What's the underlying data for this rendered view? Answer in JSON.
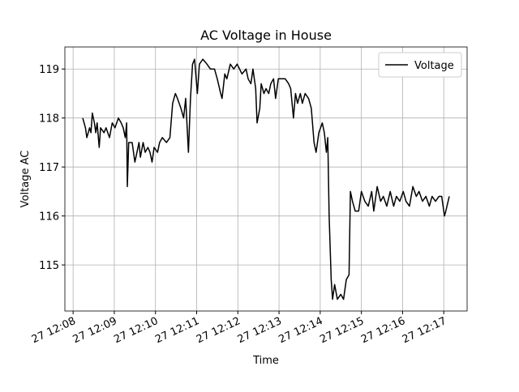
{
  "chart_data": {
    "type": "line",
    "title": "AC Voltage in House",
    "xlabel": "Time",
    "ylabel": "Voltage AC",
    "x": [
      "27 12:08:14",
      "27 12:08:18",
      "27 12:08:20",
      "27 12:08:24",
      "27 12:08:26",
      "27 12:08:28",
      "27 12:08:31",
      "27 12:08:33",
      "27 12:08:35",
      "27 12:08:38",
      "27 12:08:40",
      "27 12:08:45",
      "27 12:08:48",
      "27 12:08:53",
      "27 12:08:57",
      "27 12:09:01",
      "27 12:09:06",
      "27 12:09:10",
      "27 12:09:13",
      "27 12:09:16",
      "27 12:09:18",
      "27 12:09:19",
      "27 12:09:21",
      "27 12:09:26",
      "27 12:09:30",
      "27 12:09:33",
      "27 12:09:36",
      "27 12:09:38",
      "27 12:09:42",
      "27 12:09:45",
      "27 12:09:49",
      "27 12:09:52",
      "27 12:09:55",
      "27 12:09:58",
      "27 12:10:03",
      "27 12:10:06",
      "27 12:10:10",
      "27 12:10:16",
      "27 12:10:21",
      "27 12:10:25",
      "27 12:10:29",
      "27 12:10:32",
      "27 12:10:37",
      "27 12:10:41",
      "27 12:10:44",
      "27 12:10:48",
      "27 12:10:51",
      "27 12:10:54",
      "27 12:10:57",
      "27 12:11:01",
      "27 12:11:04",
      "27 12:11:09",
      "27 12:11:15",
      "27 12:11:20",
      "27 12:11:26",
      "27 12:11:30",
      "27 12:11:35",
      "27 12:11:37",
      "27 12:11:41",
      "27 12:11:44",
      "27 12:11:49",
      "27 12:11:54",
      "27 12:11:59",
      "27 12:12:06",
      "27 12:12:12",
      "27 12:12:15",
      "27 12:12:19",
      "27 12:12:22",
      "27 12:12:26",
      "27 12:12:28",
      "27 12:12:32",
      "27 12:12:34",
      "27 12:12:38",
      "27 12:12:41",
      "27 12:12:45",
      "27 12:12:48",
      "27 12:12:52",
      "27 12:12:55",
      "27 12:12:59",
      "27 12:13:04",
      "27 12:13:09",
      "27 12:13:14",
      "27 12:13:17",
      "27 12:13:21",
      "27 12:13:24",
      "27 12:13:27",
      "27 12:13:31",
      "27 12:13:34",
      "27 12:13:38",
      "27 12:13:43",
      "27 12:13:47",
      "27 12:13:51",
      "27 12:13:54",
      "27 12:13:58",
      "27 12:14:03",
      "27 12:14:06",
      "27 12:14:09",
      "27 12:14:11",
      "27 12:14:13",
      "27 12:14:16",
      "27 12:14:18",
      "27 12:14:21",
      "27 12:14:25",
      "27 12:14:30",
      "27 12:14:34",
      "27 12:14:38",
      "27 12:14:42",
      "27 12:14:44",
      "27 12:14:47",
      "27 12:14:51",
      "27 12:14:56",
      "27 12:15:00",
      "27 12:15:05",
      "27 12:15:10",
      "27 12:15:15",
      "27 12:15:18",
      "27 12:15:23",
      "27 12:15:28",
      "27 12:15:32",
      "27 12:15:37",
      "27 12:15:42",
      "27 12:15:47",
      "27 12:15:51",
      "27 12:15:56",
      "27 12:16:01",
      "27 12:16:05",
      "27 12:16:10",
      "27 12:16:15",
      "27 12:16:20",
      "27 12:16:24",
      "27 12:16:29",
      "27 12:16:34",
      "27 12:16:39",
      "27 12:16:43",
      "27 12:16:48",
      "27 12:16:53",
      "27 12:16:57",
      "27 12:17:01",
      "27 12:17:03",
      "27 12:17:08"
    ],
    "series": [
      {
        "name": "Voltage",
        "color": "#000000",
        "values": [
          118.0,
          117.8,
          117.6,
          117.8,
          117.7,
          118.1,
          117.9,
          117.7,
          117.9,
          117.4,
          117.8,
          117.7,
          117.8,
          117.6,
          117.9,
          117.8,
          118.0,
          117.9,
          117.8,
          117.6,
          117.9,
          116.6,
          117.5,
          117.5,
          117.1,
          117.3,
          117.5,
          117.2,
          117.5,
          117.3,
          117.4,
          117.3,
          117.1,
          117.4,
          117.3,
          117.5,
          117.6,
          117.5,
          117.6,
          118.3,
          118.5,
          118.4,
          118.2,
          118.0,
          118.4,
          117.3,
          118.4,
          119.1,
          119.2,
          118.5,
          119.1,
          119.2,
          119.1,
          119.0,
          119.0,
          118.8,
          118.5,
          118.4,
          118.9,
          118.8,
          119.1,
          119.0,
          119.1,
          118.9,
          119.0,
          118.8,
          118.7,
          119.0,
          118.6,
          117.9,
          118.2,
          118.7,
          118.5,
          118.6,
          118.5,
          118.7,
          118.8,
          118.4,
          118.8,
          118.8,
          118.8,
          118.7,
          118.6,
          118.0,
          118.5,
          118.3,
          118.5,
          118.3,
          118.5,
          118.4,
          118.2,
          117.5,
          117.3,
          117.7,
          117.9,
          117.7,
          117.3,
          117.6,
          116.0,
          114.7,
          114.3,
          114.6,
          114.3,
          114.4,
          114.3,
          114.7,
          114.8,
          116.5,
          116.3,
          116.1,
          116.1,
          116.5,
          116.3,
          116.2,
          116.5,
          116.1,
          116.6,
          116.3,
          116.4,
          116.2,
          116.5,
          116.2,
          116.4,
          116.3,
          116.5,
          116.3,
          116.2,
          116.6,
          116.4,
          116.5,
          116.3,
          116.4,
          116.2,
          116.4,
          116.3,
          116.4,
          116.4,
          116.0,
          116.1,
          116.4
        ]
      }
    ],
    "xlim": [
      "27 12:07:48",
      "27 12:17:34"
    ],
    "xticks": [
      "27 12:08",
      "27 12:09",
      "27 12:10",
      "27 12:11",
      "27 12:12",
      "27 12:13",
      "27 12:14",
      "27 12:15",
      "27 12:16",
      "27 12:17"
    ],
    "ylim": [
      114.06,
      119.45
    ],
    "yticks": [
      115,
      116,
      117,
      118,
      119
    ],
    "grid": true,
    "legend": "upper right"
  }
}
